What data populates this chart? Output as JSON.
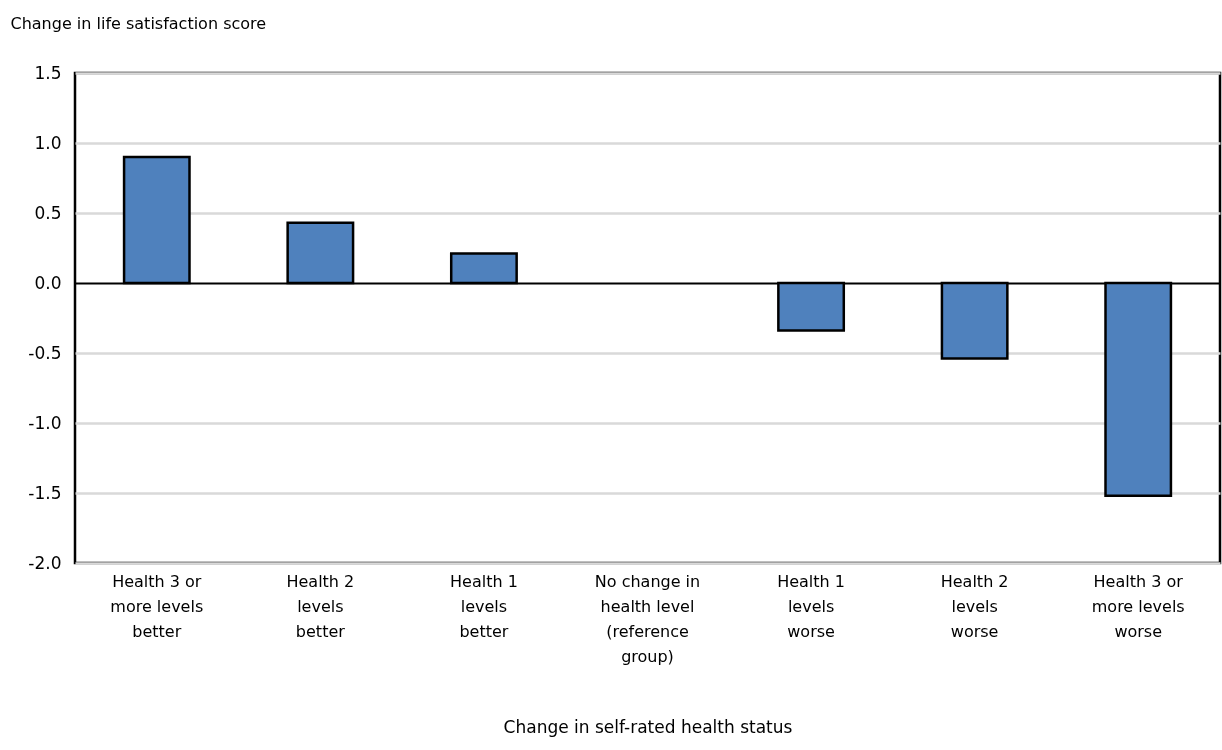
{
  "chart_data": {
    "type": "bar",
    "xlabel": "Change in self-rated health status",
    "ylabel": "Change in life satisfaction score",
    "categories": [
      "Health 3 or\nmore levels\nbetter",
      "Health 2\nlevels\nbetter",
      "Health 1\nlevels\nbetter",
      "No change in\nhealth level\n(reference\ngroup)",
      "Health 1\nlevels\nworse",
      "Health 2\nlevels\nworse",
      "Health 3 or\nmore levels\nworse"
    ],
    "values": [
      0.9,
      0.43,
      0.21,
      0,
      -0.34,
      -0.54,
      -1.52
    ],
    "color": "#4f81bd",
    "ylim": [
      -2,
      1.5
    ],
    "yticks": [
      {
        "value": -2,
        "label": "-2.0"
      },
      {
        "value": -1.5,
        "label": "-1.5"
      },
      {
        "value": -1,
        "label": "-1.0"
      },
      {
        "value": -0.5,
        "label": "-0.5"
      },
      {
        "value": 0,
        "label": "0.0"
      },
      {
        "value": 0.5,
        "label": "0.5"
      },
      {
        "value": 1,
        "label": "1.0"
      },
      {
        "value": 1.5,
        "label": "1.5"
      }
    ],
    "grid": "y"
  }
}
